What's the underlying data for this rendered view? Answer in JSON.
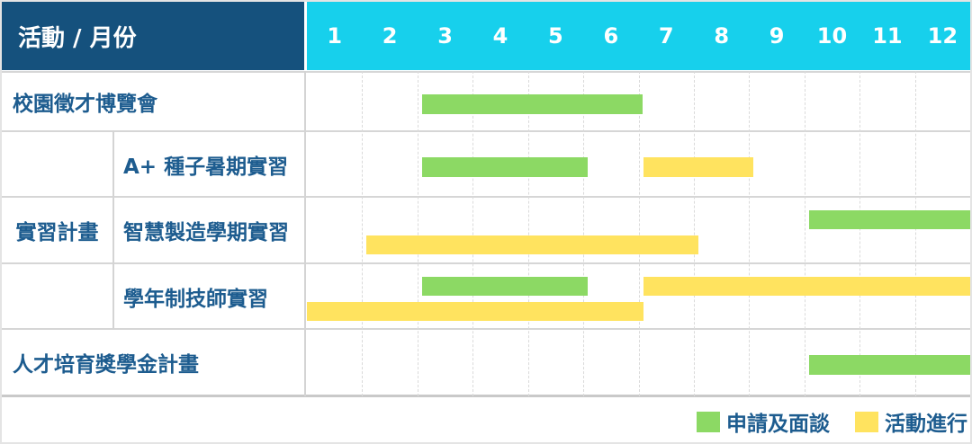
{
  "header": {
    "label": "活動 / 月份",
    "months": [
      "1",
      "2",
      "3",
      "4",
      "5",
      "6",
      "7",
      "8",
      "9",
      "10",
      "11",
      "12"
    ]
  },
  "colors": {
    "corner_bg": "#15517d",
    "months_bg": "#17d0ec",
    "green": "#8cd964",
    "yellow": "#ffe35f",
    "label_text": "#1d5c8f",
    "grid_line": "#dadada",
    "separator": "#d6d6d6"
  },
  "legend": {
    "items": [
      {
        "key": "apply",
        "label": "申請及面談"
      },
      {
        "key": "activity",
        "label": "活動進行"
      }
    ]
  },
  "chart_data": {
    "type": "bar",
    "subtype": "gantt",
    "x_ticks": [
      "1",
      "2",
      "3",
      "4",
      "5",
      "6",
      "7",
      "8",
      "9",
      "10",
      "11",
      "12"
    ],
    "x_range": [
      1,
      12
    ],
    "row_header": "活動 / 月份",
    "group_column": {
      "label": "實習計畫",
      "spans_rows": [
        1,
        2,
        3
      ]
    },
    "bar_types": {
      "apply": {
        "legend": "申請及面談",
        "color": "#8cd964"
      },
      "activity": {
        "legend": "活動進行",
        "color": "#ffe35f"
      }
    },
    "rows": [
      {
        "label": "校園徵才博覽會",
        "group": null,
        "lanes": 1,
        "bars": [
          {
            "type": "apply",
            "start_month": 3,
            "end_month": 6,
            "lane": 0
          }
        ]
      },
      {
        "label": "A+ 種子暑期實習",
        "group": "實習計畫",
        "lanes": 1,
        "bars": [
          {
            "type": "apply",
            "start_month": 3,
            "end_month": 5,
            "lane": 0
          },
          {
            "type": "activity",
            "start_month": 7,
            "end_month": 8,
            "lane": 0
          }
        ]
      },
      {
        "label": "智慧製造學期實習",
        "group": "實習計畫",
        "lanes": 2,
        "bars": [
          {
            "type": "apply",
            "start_month": 10,
            "end_month": 12,
            "lane": 0
          },
          {
            "type": "activity",
            "start_month": 2,
            "end_month": 7,
            "lane": 1
          }
        ]
      },
      {
        "label": "學年制技師實習",
        "group": "實習計畫",
        "lanes": 2,
        "bars": [
          {
            "type": "apply",
            "start_month": 3,
            "end_month": 5,
            "lane": 0
          },
          {
            "type": "activity",
            "start_month": 7,
            "end_month": 12,
            "lane": 0
          },
          {
            "type": "activity",
            "start_month": 1,
            "end_month": 6,
            "lane": 1
          }
        ]
      },
      {
        "label": "人才培育獎學金計畫",
        "group": null,
        "lanes": 1,
        "bars": [
          {
            "type": "apply",
            "start_month": 10,
            "end_month": 12,
            "lane": 0
          }
        ]
      }
    ]
  }
}
